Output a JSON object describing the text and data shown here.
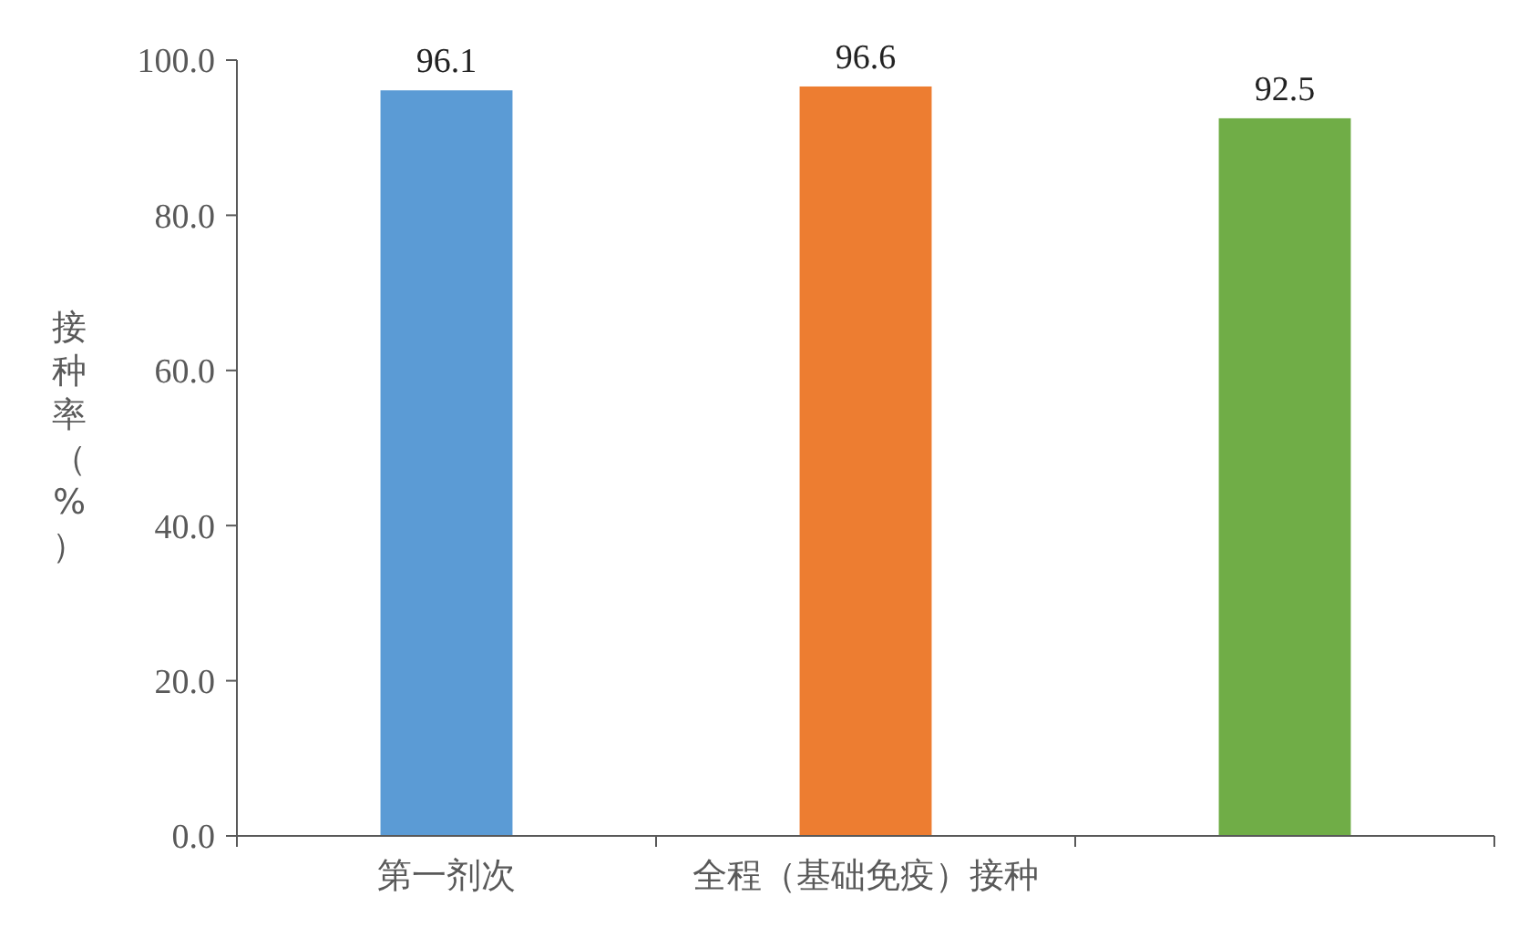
{
  "chart_data": {
    "type": "bar",
    "ylabel": "接种率（%）",
    "categories": [
      "第一剂次",
      "全程（基础免疫）接种",
      null
    ],
    "values": [
      96.1,
      96.6,
      92.5
    ],
    "colors": [
      "#5b9bd5",
      "#ed7d31",
      "#70ad47"
    ],
    "ylim": [
      0,
      100
    ],
    "yticks": [
      {
        "value": 0,
        "label": "0.0"
      },
      {
        "value": 20,
        "label": "20.0"
      },
      {
        "value": 40,
        "label": "40.0"
      },
      {
        "value": 60,
        "label": "60.0"
      },
      {
        "value": 80,
        "label": "80.0"
      },
      {
        "value": 100,
        "label": "100.0"
      }
    ],
    "data_labels": true,
    "grid": false
  }
}
